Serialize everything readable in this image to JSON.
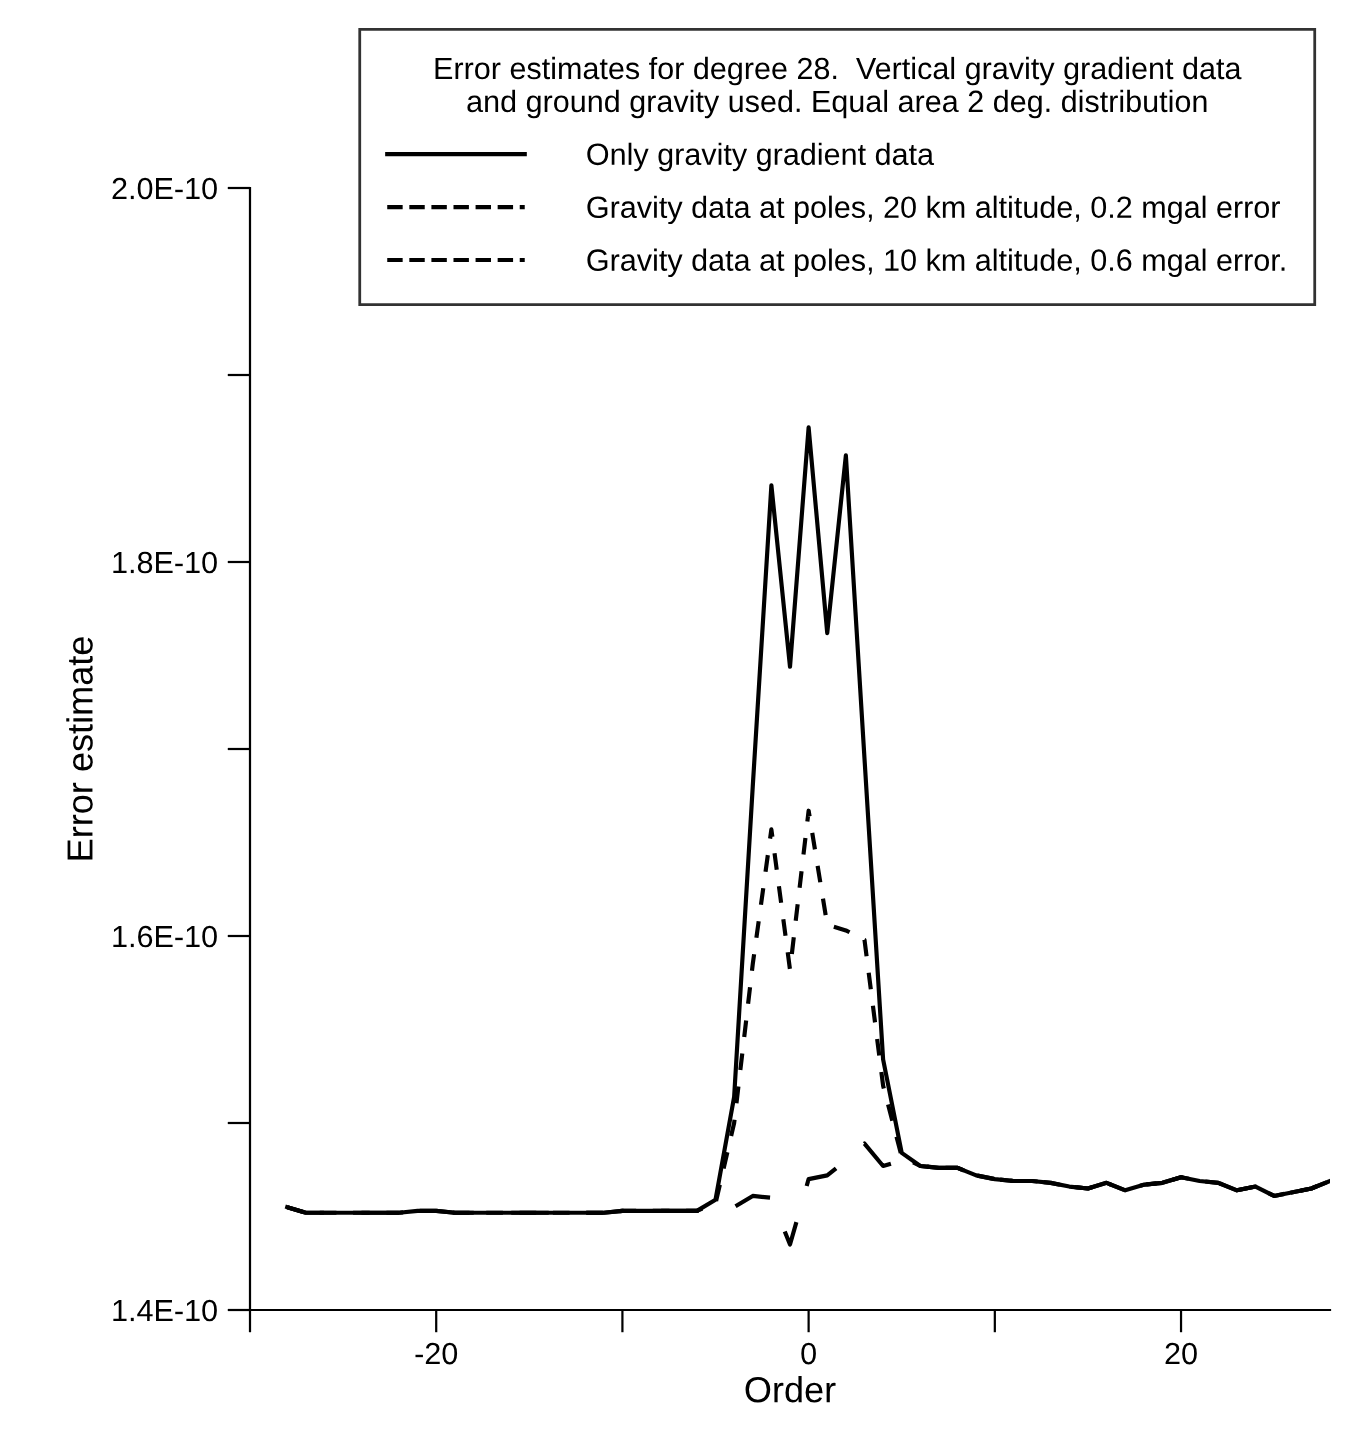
{
  "chart_data": {
    "type": "line",
    "legend_title": "Error estimates for degree 28.  Vertical gravity gradient data\nand ground gravity used. Equal area 2 deg. distribution",
    "xlabel": "Order",
    "ylabel": "Error estimate",
    "x": [
      -28,
      -27,
      -26,
      -25,
      -24,
      -23,
      -22,
      -21,
      -20,
      -19,
      -18,
      -17,
      -16,
      -15,
      -14,
      -13,
      -12,
      -11,
      -10,
      -9,
      -8,
      -7,
      -6,
      -5,
      -4,
      -3,
      -2,
      -1,
      0,
      1,
      2,
      3,
      4,
      5,
      6,
      7,
      8,
      9,
      10,
      11,
      12,
      13,
      14,
      15,
      16,
      17,
      18,
      19,
      20,
      21,
      22,
      23,
      24,
      25,
      26,
      27,
      28
    ],
    "series": [
      {
        "name": "Only gravity gradient data",
        "color": "#000000",
        "line_style": "solid",
        "values": [
          1.455e-10,
          1.452e-10,
          1.452e-10,
          1.452e-10,
          1.452e-10,
          1.452e-10,
          1.452e-10,
          1.453e-10,
          1.453e-10,
          1.452e-10,
          1.452e-10,
          1.452e-10,
          1.452e-10,
          1.452e-10,
          1.452e-10,
          1.452e-10,
          1.452e-10,
          1.452e-10,
          1.453e-10,
          1.453e-10,
          1.453e-10,
          1.453e-10,
          1.453e-10,
          1.459e-10,
          1.514e-10,
          1.68e-10,
          1.841e-10,
          1.744e-10,
          1.872e-10,
          1.762e-10,
          1.857e-10,
          1.695e-10,
          1.534e-10,
          1.484e-10,
          1.477e-10,
          1.476e-10,
          1.476e-10,
          1.472e-10,
          1.47e-10,
          1.469e-10,
          1.469e-10,
          1.468e-10,
          1.466e-10,
          1.465e-10,
          1.468e-10,
          1.464e-10,
          1.467e-10,
          1.468e-10,
          1.471e-10,
          1.469e-10,
          1.468e-10,
          1.464e-10,
          1.466e-10,
          1.461e-10,
          1.463e-10,
          1.465e-10,
          1.469e-10
        ]
      },
      {
        "name": "Gravity data at poles, 20 km altitude, 0.2 mgal error",
        "color": "#000000",
        "line_style": "dashed",
        "values": [
          1.455e-10,
          1.452e-10,
          1.452e-10,
          1.452e-10,
          1.452e-10,
          1.452e-10,
          1.452e-10,
          1.453e-10,
          1.453e-10,
          1.452e-10,
          1.452e-10,
          1.452e-10,
          1.452e-10,
          1.452e-10,
          1.452e-10,
          1.452e-10,
          1.452e-10,
          1.452e-10,
          1.453e-10,
          1.453e-10,
          1.453e-10,
          1.453e-10,
          1.453e-10,
          1.457e-10,
          1.5e-10,
          1.585e-10,
          1.657e-10,
          1.582e-10,
          1.667e-10,
          1.606e-10,
          1.603e-10,
          1.598e-10,
          1.52e-10,
          1.482e-10,
          1.477e-10,
          1.476e-10,
          1.476e-10,
          1.472e-10,
          1.47e-10,
          1.469e-10,
          1.469e-10,
          1.468e-10,
          1.466e-10,
          1.465e-10,
          1.468e-10,
          1.464e-10,
          1.467e-10,
          1.468e-10,
          1.471e-10,
          1.469e-10,
          1.468e-10,
          1.464e-10,
          1.466e-10,
          1.461e-10,
          1.463e-10,
          1.465e-10,
          1.469e-10
        ]
      },
      {
        "name": "Gravity data at poles, 10 km altitude, 0.6 mgal error.",
        "color": "#000000",
        "line_style": "longdash",
        "values": [
          1.455e-10,
          1.452e-10,
          1.452e-10,
          1.452e-10,
          1.452e-10,
          1.452e-10,
          1.452e-10,
          1.453e-10,
          1.453e-10,
          1.452e-10,
          1.452e-10,
          1.452e-10,
          1.452e-10,
          1.452e-10,
          1.452e-10,
          1.452e-10,
          1.452e-10,
          1.452e-10,
          1.453e-10,
          1.453e-10,
          1.453e-10,
          1.453e-10,
          1.453e-10,
          1.455e-10,
          1.455e-10,
          1.461e-10,
          1.46e-10,
          1.435e-10,
          1.47e-10,
          1.472e-10,
          1.48e-10,
          1.489e-10,
          1.477e-10,
          1.48e-10,
          1.477e-10,
          1.476e-10,
          1.476e-10,
          1.472e-10,
          1.47e-10,
          1.469e-10,
          1.469e-10,
          1.468e-10,
          1.466e-10,
          1.465e-10,
          1.468e-10,
          1.464e-10,
          1.467e-10,
          1.468e-10,
          1.471e-10,
          1.469e-10,
          1.468e-10,
          1.464e-10,
          1.466e-10,
          1.461e-10,
          1.463e-10,
          1.465e-10,
          1.469e-10
        ]
      }
    ],
    "xlim": [
      -30,
      28
    ],
    "xticks": [
      {
        "value": -30,
        "label": null
      },
      -20,
      {
        "value": -10,
        "label": null
      },
      0,
      {
        "value": 10,
        "label": null
      },
      20
    ],
    "ylim": [
      1.4e-10,
      2e-10
    ],
    "yticks": [
      {
        "value": 1.4e-10,
        "label": "1.4E-10"
      },
      {
        "value": 1.5e-10,
        "label": null
      },
      {
        "value": 1.6e-10,
        "label": "1.6E-10"
      },
      {
        "value": 1.7e-10,
        "label": null
      },
      {
        "value": 1.8e-10,
        "label": "1.8E-10"
      },
      {
        "value": 1.9e-10,
        "label": null
      },
      {
        "value": 2e-10,
        "label": "2.0E-10"
      }
    ],
    "grid": false,
    "legend": "top right"
  }
}
